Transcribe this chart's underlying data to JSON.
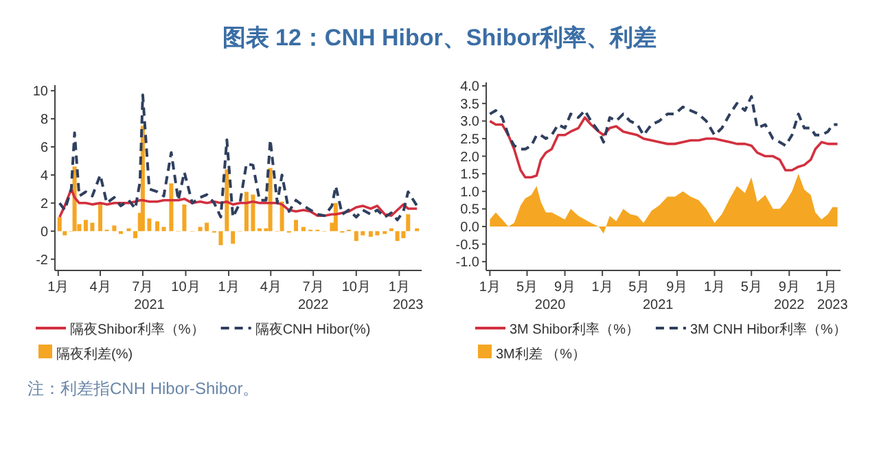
{
  "chart_data": [
    {
      "type": "line",
      "title": "图表 12：CNH Hibor、Shibor利率、利差",
      "annotations": [
        "注：利差指CNH Hibor-Shibor。"
      ],
      "x2lim": [
        "2020-12-25",
        "2023-02-18"
      ],
      "x2ticks": [
        {
          "value": "2021-07-15",
          "label": "2021"
        },
        {
          "value": "2022-07-01",
          "label": "2022"
        },
        {
          "value": "2023-01-20",
          "label": "2023"
        }
      ],
      "x": [
        "2021-01-04",
        "2021-01-15",
        "2021-01-29",
        "2021-02-05",
        "2021-02-15",
        "2021-03-01",
        "2021-03-15",
        "2021-04-01",
        "2021-04-15",
        "2021-05-01",
        "2021-05-15",
        "2021-06-01",
        "2021-06-15",
        "2021-06-25",
        "2021-07-01",
        "2021-07-15",
        "2021-08-01",
        "2021-08-15",
        "2021-08-31",
        "2021-09-15",
        "2021-09-28",
        "2021-10-15",
        "2021-11-01",
        "2021-11-15",
        "2021-12-01",
        "2021-12-15",
        "2021-12-28",
        "2022-01-10",
        "2022-01-25",
        "2022-02-08",
        "2022-02-22",
        "2022-03-08",
        "2022-03-22",
        "2022-03-31",
        "2022-04-15",
        "2022-04-25",
        "2022-05-10",
        "2022-05-25",
        "2022-06-10",
        "2022-06-25",
        "2022-07-10",
        "2022-07-25",
        "2022-08-10",
        "2022-08-18",
        "2022-09-01",
        "2022-09-15",
        "2022-10-01",
        "2022-10-15",
        "2022-11-01",
        "2022-11-15",
        "2022-12-01",
        "2022-12-15",
        "2022-12-28",
        "2023-01-10",
        "2023-01-20",
        "2023-02-08"
      ],
      "series": [
        {
          "name": "隔夜利差(%)",
          "type": "bar",
          "color": "#f5a623",
          "values": [
            1.0,
            -0.3,
            0,
            4.6,
            0.5,
            0.8,
            0.6,
            2.0,
            0.1,
            0.4,
            -0.2,
            0.2,
            -0.5,
            1.3,
            7.5,
            0.9,
            0.7,
            0.3,
            3.4,
            0,
            1.9,
            0,
            0.3,
            0.6,
            -0.1,
            -1.0,
            4.4,
            -0.9,
            0,
            2.8,
            2.6,
            0.2,
            0.2,
            4.5,
            0,
            2.1,
            -0.1,
            0.8,
            0.3,
            0.1,
            0.1,
            0,
            0.6,
            2.0,
            -0.1,
            0.1,
            -0.7,
            -0.3,
            -0.4,
            -0.3,
            -0.2,
            0.2,
            -0.7,
            -0.5,
            1.2,
            0.2
          ]
        },
        {
          "name": "隔夜Shibor利率（%）",
          "type": "line",
          "line_style": "solid",
          "color": "#d2303f",
          "values": [
            1.0,
            1.8,
            3.0,
            2.4,
            2.0,
            2.0,
            1.9,
            2.0,
            1.9,
            2.0,
            2.0,
            2.0,
            2.1,
            2.2,
            2.2,
            2.1,
            2.1,
            2.2,
            2.2,
            2.2,
            2.3,
            2.0,
            2.1,
            2.0,
            2.1,
            2.0,
            2.1,
            1.9,
            2.0,
            2.0,
            2.1,
            2.0,
            2.0,
            2.0,
            2.0,
            1.9,
            1.5,
            1.4,
            1.5,
            1.4,
            1.1,
            1.1,
            1.2,
            1.2,
            1.3,
            1.4,
            1.7,
            1.8,
            1.6,
            1.8,
            1.2,
            1.1,
            1.5,
            1.9,
            1.6,
            1.6
          ]
        },
        {
          "name": "隔夜CNH Hibor(%)",
          "type": "line",
          "line_style": "dashed",
          "color": "#2f3f5e",
          "values": [
            2.0,
            1.5,
            3.0,
            7.0,
            2.5,
            2.8,
            2.5,
            4.0,
            2.0,
            2.4,
            1.8,
            2.2,
            1.6,
            3.5,
            9.7,
            3.0,
            2.8,
            2.5,
            5.6,
            2.2,
            4.2,
            2.0,
            2.4,
            2.6,
            2.0,
            1.0,
            6.5,
            1.0,
            2.0,
            4.8,
            4.7,
            2.2,
            2.2,
            6.5,
            2.0,
            4.0,
            1.4,
            2.2,
            1.8,
            1.5,
            1.2,
            1.1,
            1.8,
            3.2,
            1.2,
            1.5,
            1.0,
            1.5,
            1.2,
            1.5,
            1.0,
            1.3,
            0.8,
            1.4,
            2.8,
            1.8
          ]
        }
      ],
      "xlim": [
        "2020-12-25",
        "2023-02-18"
      ],
      "xticks": [
        {
          "value": "2021-01-01",
          "label": "1月"
        },
        {
          "value": "2021-04-01",
          "label": "4月"
        },
        {
          "value": "2021-07-01",
          "label": "7月"
        },
        {
          "value": "2021-10-01",
          "label": "10月"
        },
        {
          "value": "2022-01-01",
          "label": "1月"
        },
        {
          "value": "2022-04-01",
          "label": "4月"
        },
        {
          "value": "2022-07-01",
          "label": "7月"
        },
        {
          "value": "2022-10-01",
          "label": "10月"
        },
        {
          "value": "2023-01-01",
          "label": "1月"
        }
      ],
      "ylim": [
        -2.8,
        10.4
      ],
      "yticks": [
        -2,
        0,
        2,
        4,
        6,
        8,
        10
      ],
      "legend": "bottom"
    },
    {
      "type": "line",
      "x2lim": [
        "2019-12-20",
        "2023-02-15"
      ],
      "x2ticks": [
        {
          "value": "2020-07-15",
          "label": "2020"
        },
        {
          "value": "2021-07-01",
          "label": "2021"
        },
        {
          "value": "2022-09-01",
          "label": "2022"
        },
        {
          "value": "2023-01-20",
          "label": "2023"
        }
      ],
      "x": [
        "2020-01-01",
        "2020-01-20",
        "2020-02-10",
        "2020-03-01",
        "2020-03-20",
        "2020-04-10",
        "2020-04-25",
        "2020-05-15",
        "2020-06-01",
        "2020-06-15",
        "2020-07-01",
        "2020-07-20",
        "2020-08-10",
        "2020-09-01",
        "2020-09-20",
        "2020-10-15",
        "2020-11-05",
        "2020-11-25",
        "2020-12-20",
        "2021-01-05",
        "2021-01-25",
        "2021-02-15",
        "2021-03-10",
        "2021-04-01",
        "2021-04-25",
        "2021-05-15",
        "2021-06-10",
        "2021-07-05",
        "2021-08-01",
        "2021-08-25",
        "2021-09-20",
        "2021-10-15",
        "2021-11-10",
        "2021-12-05",
        "2022-01-01",
        "2022-01-25",
        "2022-02-20",
        "2022-03-15",
        "2022-04-10",
        "2022-05-01",
        "2022-05-20",
        "2022-06-15",
        "2022-07-10",
        "2022-08-01",
        "2022-08-20",
        "2022-09-10",
        "2022-10-01",
        "2022-10-20",
        "2022-11-10",
        "2022-11-25",
        "2022-12-15",
        "2023-01-05",
        "2023-01-20",
        "2023-02-05"
      ],
      "series": [
        {
          "name": "3M利差 （%）",
          "type": "area",
          "color": "#f5a623",
          "values": [
            0.2,
            0.4,
            0.2,
            0,
            0.1,
            0.6,
            0.8,
            0.9,
            1.15,
            0.7,
            0.4,
            0.4,
            0.3,
            0.2,
            0.5,
            0.3,
            0.2,
            0.1,
            0,
            -0.2,
            0.3,
            0.15,
            0.5,
            0.35,
            0.3,
            0.1,
            0.45,
            0.6,
            0.85,
            0.85,
            1.0,
            0.85,
            0.75,
            0.5,
            0.1,
            0.35,
            0.8,
            1.15,
            0.95,
            1.4,
            0.7,
            0.9,
            0.5,
            0.5,
            0.7,
            1.0,
            1.5,
            1.05,
            0.9,
            0.4,
            0.2,
            0.35,
            0.55,
            0.55
          ]
        },
        {
          "name": "3M Shibor利率（%）",
          "type": "line",
          "line_style": "solid",
          "color": "#d2303f",
          "values": [
            3.0,
            2.9,
            2.9,
            2.6,
            2.2,
            1.6,
            1.4,
            1.4,
            1.45,
            1.9,
            2.1,
            2.2,
            2.6,
            2.6,
            2.7,
            2.8,
            3.1,
            2.9,
            2.7,
            2.6,
            2.8,
            2.85,
            2.7,
            2.65,
            2.6,
            2.5,
            2.45,
            2.4,
            2.35,
            2.35,
            2.4,
            2.45,
            2.45,
            2.5,
            2.5,
            2.45,
            2.4,
            2.35,
            2.35,
            2.3,
            2.1,
            2.0,
            2.0,
            1.9,
            1.6,
            1.6,
            1.7,
            1.75,
            1.9,
            2.2,
            2.4,
            2.35,
            2.35,
            2.35
          ]
        },
        {
          "name": "3M CNH Hibor利率（%）",
          "type": "line",
          "line_style": "dashed",
          "color": "#2f3f5e",
          "values": [
            3.2,
            3.3,
            3.1,
            2.6,
            2.3,
            2.2,
            2.2,
            2.3,
            2.6,
            2.6,
            2.5,
            2.6,
            2.9,
            2.8,
            3.2,
            3.1,
            3.3,
            3.0,
            2.7,
            2.4,
            3.1,
            3.0,
            3.2,
            3.0,
            2.9,
            2.6,
            2.9,
            3.0,
            3.2,
            3.2,
            3.4,
            3.3,
            3.2,
            3.0,
            2.6,
            2.8,
            3.2,
            3.5,
            3.3,
            3.7,
            2.8,
            2.9,
            2.5,
            2.4,
            2.3,
            2.6,
            3.2,
            2.8,
            2.8,
            2.6,
            2.6,
            2.7,
            2.9,
            2.9
          ]
        }
      ],
      "xlim": [
        "2019-12-20",
        "2023-02-15"
      ],
      "xticks": [
        {
          "value": "2020-01-01",
          "label": "1月"
        },
        {
          "value": "2020-05-01",
          "label": "5月"
        },
        {
          "value": "2020-09-01",
          "label": "9月"
        },
        {
          "value": "2021-01-01",
          "label": "1月"
        },
        {
          "value": "2021-05-01",
          "label": "5月"
        },
        {
          "value": "2021-09-01",
          "label": "9月"
        },
        {
          "value": "2022-01-01",
          "label": "1月"
        },
        {
          "value": "2022-05-01",
          "label": "5月"
        },
        {
          "value": "2022-09-01",
          "label": "9月"
        },
        {
          "value": "2023-01-01",
          "label": "1月"
        }
      ],
      "ylim": [
        -1.25,
        4.1
      ],
      "yticks": [
        {
          "value": -1,
          "label": "-1.0"
        },
        {
          "value": -0.5,
          "label": "-0.5"
        },
        {
          "value": 0,
          "label": "0.0"
        },
        {
          "value": 0.5,
          "label": "0.5"
        },
        {
          "value": 1,
          "label": "1.0"
        },
        {
          "value": 1.5,
          "label": "1.5"
        },
        {
          "value": 2,
          "label": "2.0"
        },
        {
          "value": 2.5,
          "label": "2.5"
        },
        {
          "value": 3,
          "label": "3.0"
        },
        {
          "value": 3.5,
          "label": "3.5"
        },
        {
          "value": 4,
          "label": "4.0"
        }
      ],
      "legend": "bottom"
    }
  ]
}
